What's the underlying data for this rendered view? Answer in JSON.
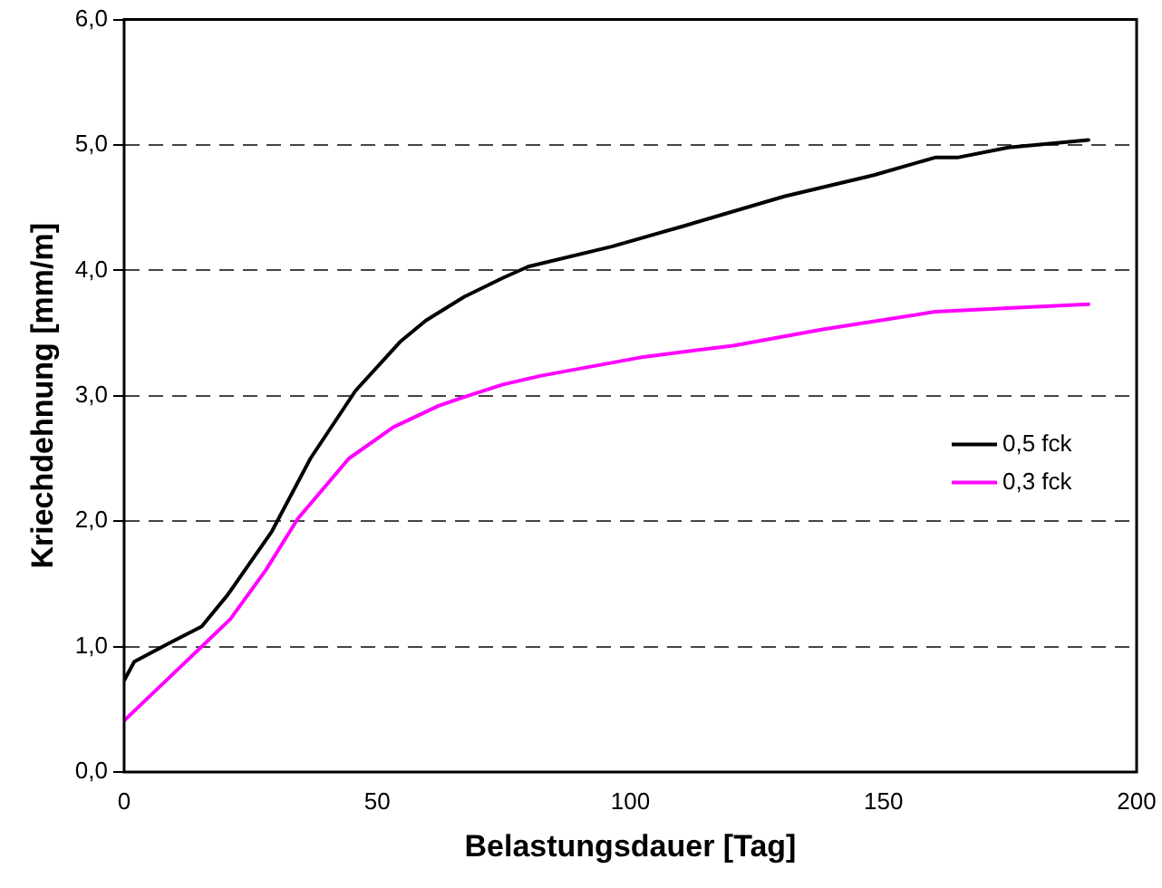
{
  "chart_data": {
    "type": "line",
    "xlabel": "Belastungsdauer [Tag]",
    "ylabel": "Kriechdehnung [mm/m]",
    "xlim": [
      0,
      200
    ],
    "xticks": [
      0,
      50,
      100,
      150,
      200
    ],
    "ylim": [
      0,
      6
    ],
    "yticks": [
      {
        "value": 0,
        "label": "0,0"
      },
      {
        "value": 1,
        "label": "1,0"
      },
      {
        "value": 2,
        "label": "2,0"
      },
      {
        "value": 3,
        "label": "3,0"
      },
      {
        "value": 4,
        "label": "4,0"
      },
      {
        "value": 5,
        "label": "5,0"
      },
      {
        "value": 6,
        "label": "6,0"
      }
    ],
    "grid": "y",
    "line_style": "solid",
    "marker": "none",
    "legend": "right",
    "series": [
      {
        "name": "0,5 fck",
        "color": "#000000",
        "x": [
          0,
          2,
          9,
          15.3,
          20.4,
          29.2,
          36.8,
          45.7,
          54.5,
          59.6,
          67.2,
          74.8,
          79.8,
          96.3,
          110.2,
          130.4,
          148.1,
          160.2,
          164.6,
          174.7,
          190.5
        ],
        "values": [
          0.73,
          0.88,
          1.03,
          1.16,
          1.41,
          1.92,
          2.5,
          3.04,
          3.43,
          3.6,
          3.79,
          3.94,
          4.03,
          4.19,
          4.35,
          4.59,
          4.76,
          4.9,
          4.9,
          4.98,
          5.04
        ]
      },
      {
        "name": "0,3 fck",
        "color": "#ff00ff",
        "x": [
          0,
          6.5,
          16.6,
          21,
          28,
          34.3,
          44.4,
          53.2,
          62.1,
          67.2,
          74.8,
          82.4,
          102.6,
          120.3,
          138,
          160.2,
          174.7,
          190.5
        ],
        "values": [
          0.41,
          0.66,
          1.05,
          1.22,
          1.61,
          2.02,
          2.5,
          2.75,
          2.92,
          2.99,
          3.09,
          3.16,
          3.31,
          3.4,
          3.53,
          3.67,
          3.7,
          3.73
        ]
      }
    ]
  }
}
